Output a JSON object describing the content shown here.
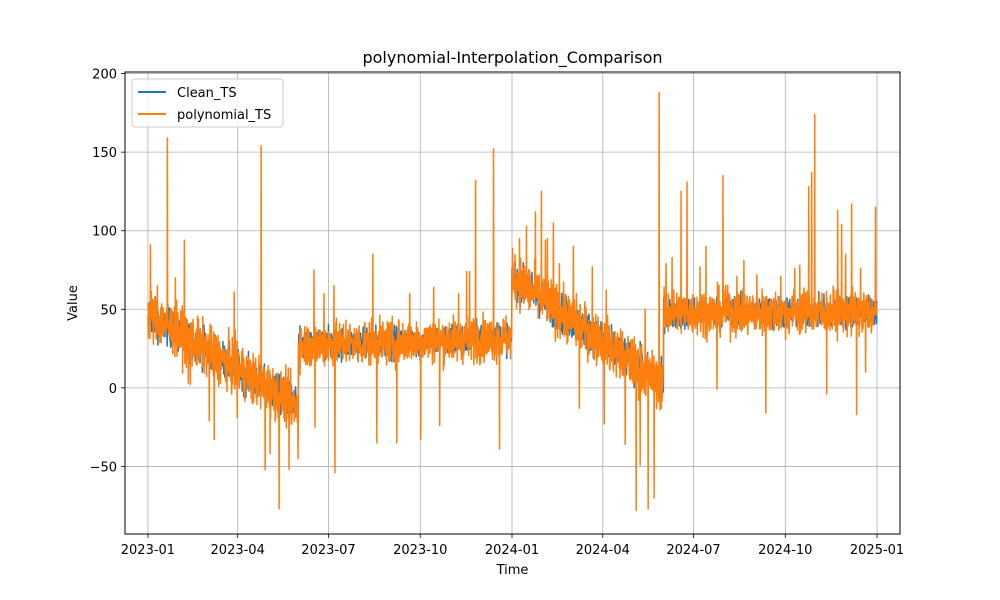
{
  "chart_data": {
    "type": "line",
    "title": "polynomial-Interpolation_Comparison",
    "xlabel": "Time",
    "ylabel": "Value",
    "xlim": [
      "2022-12-09",
      "2025-01-24"
    ],
    "ylim": [
      -93,
      201
    ],
    "x_ticks": [
      "2023-01",
      "2023-04",
      "2023-07",
      "2023-10",
      "2024-01",
      "2024-04",
      "2024-07",
      "2024-10",
      "2025-01"
    ],
    "y_ticks": [
      -50,
      0,
      50,
      100,
      150,
      200
    ],
    "grid": true,
    "legend_position": "upper-left",
    "colors": {
      "clean": "#1f77b4",
      "poly": "#ff7f0e"
    },
    "series": [
      {
        "name": "Clean_TS",
        "segments": [
          {
            "start": "2023-01-01",
            "end": "2023-05-31",
            "level_start": 47,
            "level_end": -12,
            "noise": 6
          },
          {
            "start": "2023-06-01",
            "end": "2023-12-31",
            "level_start": 27,
            "level_end": 32,
            "noise": 5
          },
          {
            "start": "2024-01-01",
            "end": "2024-05-31",
            "level_start": 70,
            "level_end": 2,
            "noise": 6
          },
          {
            "start": "2024-06-01",
            "end": "2024-12-31",
            "level_start": 48,
            "level_end": 48,
            "noise": 5
          }
        ]
      },
      {
        "name": "polynomial_TS",
        "segments": [
          {
            "start": "2023-01-01",
            "end": "2023-05-31",
            "level_start": 47,
            "level_end": -12,
            "noise": 8
          },
          {
            "start": "2023-06-01",
            "end": "2023-12-31",
            "level_start": 27,
            "level_end": 32,
            "noise": 7
          },
          {
            "start": "2024-01-01",
            "end": "2024-05-31",
            "level_start": 70,
            "level_end": 2,
            "noise": 8
          },
          {
            "start": "2024-06-01",
            "end": "2024-12-31",
            "level_start": 48,
            "level_end": 48,
            "noise": 7
          }
        ],
        "spikes": [
          [
            "2023-01-03",
            91
          ],
          [
            "2023-01-10",
            65
          ],
          [
            "2023-01-20",
            159
          ],
          [
            "2023-01-28",
            70
          ],
          [
            "2023-02-06",
            94
          ],
          [
            "2023-02-10",
            3
          ],
          [
            "2023-02-12",
            2
          ],
          [
            "2023-03-03",
            -21
          ],
          [
            "2023-03-08",
            -33
          ],
          [
            "2023-03-28",
            61
          ],
          [
            "2023-03-31",
            -19
          ],
          [
            "2023-04-15",
            72
          ],
          [
            "2023-04-15",
            -10
          ],
          [
            "2023-04-24",
            154
          ],
          [
            "2023-04-28",
            -52
          ],
          [
            "2023-05-03",
            -42
          ],
          [
            "2023-05-12",
            -77
          ],
          [
            "2023-05-22",
            -52
          ],
          [
            "2023-05-31",
            -45
          ],
          [
            "2023-06-16",
            75
          ],
          [
            "2023-06-17",
            -25
          ],
          [
            "2023-06-26",
            60
          ],
          [
            "2023-07-06",
            65
          ],
          [
            "2023-07-07",
            -54
          ],
          [
            "2023-07-18",
            43
          ],
          [
            "2023-08-14",
            85
          ],
          [
            "2023-08-18",
            -35
          ],
          [
            "2023-09-07",
            73
          ],
          [
            "2023-09-07",
            -35
          ],
          [
            "2023-09-20",
            60
          ],
          [
            "2023-10-01",
            -33
          ],
          [
            "2023-10-14",
            64
          ],
          [
            "2023-10-20",
            -24
          ],
          [
            "2023-11-08",
            60
          ],
          [
            "2023-11-16",
            74
          ],
          [
            "2023-11-19",
            74
          ],
          [
            "2023-11-25",
            132
          ],
          [
            "2023-12-08",
            40
          ],
          [
            "2023-12-13",
            152
          ],
          [
            "2023-12-19",
            -39
          ],
          [
            "2024-01-08",
            95
          ],
          [
            "2024-01-15",
            103
          ],
          [
            "2024-01-24",
            112
          ],
          [
            "2024-01-30",
            125
          ],
          [
            "2024-02-03",
            94
          ],
          [
            "2024-02-05",
            95
          ],
          [
            "2024-02-11",
            105
          ],
          [
            "2024-02-17",
            79
          ],
          [
            "2024-03-02",
            90
          ],
          [
            "2024-03-08",
            -13
          ],
          [
            "2024-03-21",
            77
          ],
          [
            "2024-04-02",
            -23
          ],
          [
            "2024-04-04",
            62
          ],
          [
            "2024-04-23",
            -36
          ],
          [
            "2024-05-04",
            -78
          ],
          [
            "2024-05-08",
            -49
          ],
          [
            "2024-05-13",
            50
          ],
          [
            "2024-05-16",
            -77
          ],
          [
            "2024-05-22",
            -70
          ],
          [
            "2024-05-27",
            188
          ],
          [
            "2024-06-03",
            79
          ],
          [
            "2024-06-09",
            83
          ],
          [
            "2024-06-18",
            125
          ],
          [
            "2024-06-24",
            131
          ],
          [
            "2024-07-07",
            77
          ],
          [
            "2024-07-13",
            90
          ],
          [
            "2024-07-24",
            -1
          ],
          [
            "2024-07-30",
            135
          ],
          [
            "2024-08-13",
            71
          ],
          [
            "2024-08-20",
            81
          ],
          [
            "2024-09-02",
            72
          ],
          [
            "2024-09-11",
            -16
          ],
          [
            "2024-09-26",
            71
          ],
          [
            "2024-10-10",
            76
          ],
          [
            "2024-10-15",
            78
          ],
          [
            "2024-10-24",
            128
          ],
          [
            "2024-10-27",
            137
          ],
          [
            "2024-10-30",
            174
          ],
          [
            "2024-11-11",
            -4
          ],
          [
            "2024-11-22",
            113
          ],
          [
            "2024-11-26",
            104
          ],
          [
            "2024-11-30",
            85
          ],
          [
            "2024-12-06",
            117
          ],
          [
            "2024-12-11",
            -17
          ],
          [
            "2024-12-15",
            76
          ],
          [
            "2024-12-20",
            10
          ],
          [
            "2024-12-30",
            115
          ]
        ]
      }
    ]
  }
}
